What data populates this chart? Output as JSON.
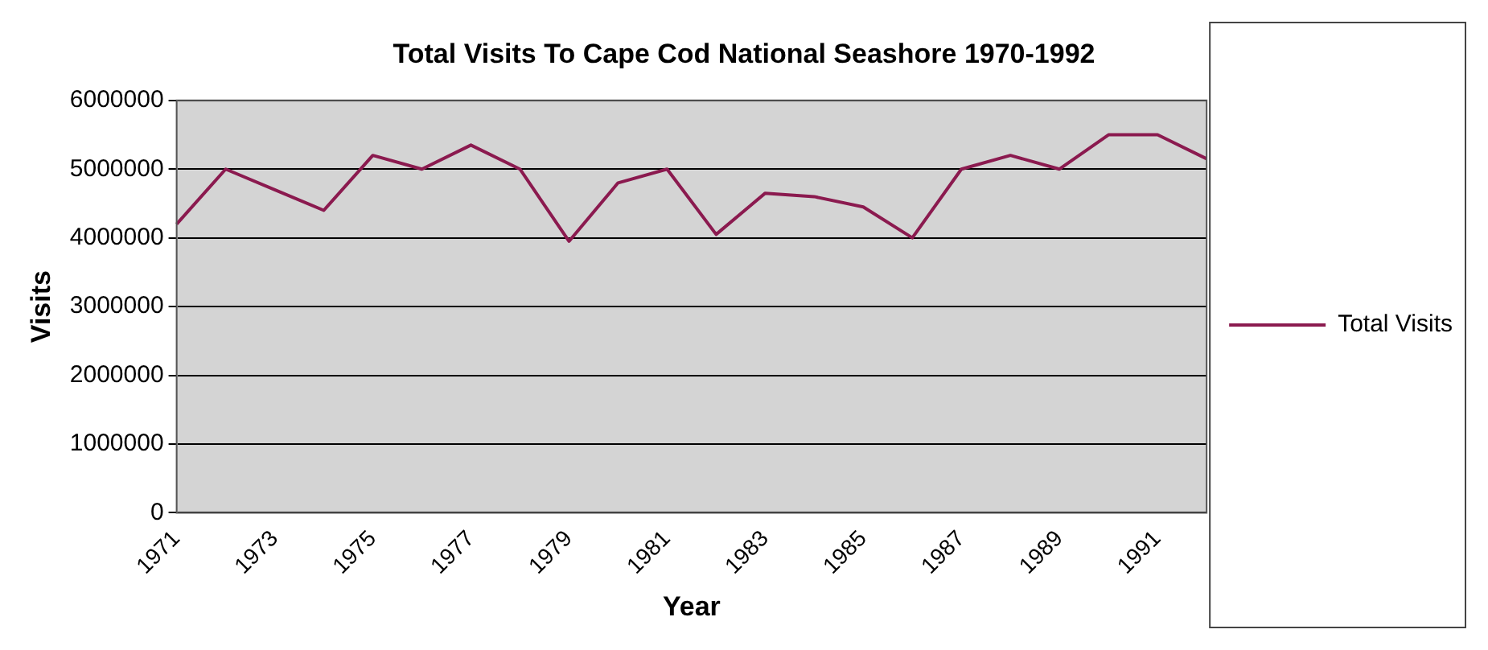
{
  "chart_data": {
    "type": "line",
    "title": "Total Visits To Cape Cod National Seashore 1970-1992",
    "xlabel": "Year",
    "ylabel": "Visits",
    "categories": [
      "1971",
      null,
      "1973",
      null,
      "1975",
      null,
      "1977",
      null,
      "1979",
      null,
      "1981",
      null,
      "1983",
      null,
      "1985",
      null,
      "1987",
      null,
      "1989",
      null,
      "1991",
      null
    ],
    "series": [
      {
        "name": "Total Visits",
        "color": "#8b1a4f",
        "values": [
          4200000,
          5000000,
          4700000,
          4400000,
          5200000,
          5000000,
          5350000,
          5000000,
          3950000,
          4800000,
          5000000,
          4050000,
          4650000,
          4600000,
          4450000,
          4000000,
          5000000,
          5200000,
          5000000,
          5500000,
          5500000,
          5150000
        ]
      }
    ],
    "ylim": [
      0,
      6000000
    ],
    "yticks": [
      0,
      1000000,
      2000000,
      3000000,
      4000000,
      5000000,
      6000000
    ],
    "grid": "y",
    "legend": "right",
    "marker": "none",
    "line_style": "solid"
  }
}
